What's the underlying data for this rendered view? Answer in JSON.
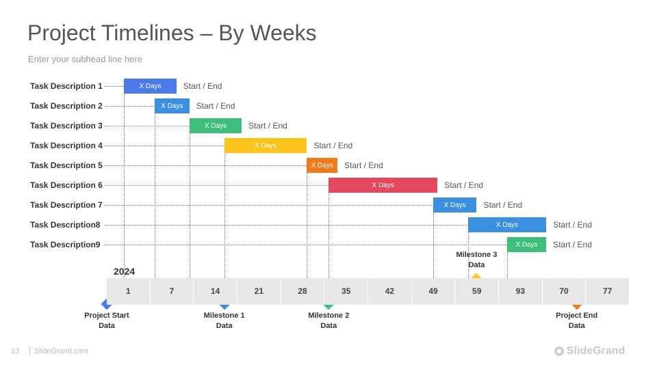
{
  "slide": {
    "title": "Project Timelines – By Weeks",
    "subhead": "Enter your subhead line here",
    "year": "2024"
  },
  "footer": {
    "page_number": "13",
    "site": "SlideGrand.com",
    "brand": "SlideGrand"
  },
  "colors": {
    "blue_light": "#4a7be8",
    "blue": "#3b8fe0",
    "green": "#3dbf7b",
    "yellow": "#fdc51c",
    "orange": "#ef7b1a",
    "red": "#e3485c",
    "axis_bg": "#e8e8e8"
  },
  "chart_data": {
    "type": "gantt",
    "title": "Project Timelines – By Weeks",
    "axis_ticks": [
      "1",
      "7",
      "14",
      "21",
      "28",
      "35",
      "42",
      "49",
      "59",
      "93",
      "70",
      "77"
    ],
    "tasks": [
      {
        "name": "Task Description 1",
        "start_tick": 0.4,
        "end_tick": 1.6,
        "bar_label": "X Days",
        "range_label": "Start / End",
        "color": "#4a7be8"
      },
      {
        "name": "Task Description 2",
        "start_tick": 1.1,
        "end_tick": 1.9,
        "bar_label": "X Days",
        "range_label": "Start / End",
        "color": "#3b8fe0"
      },
      {
        "name": "Task Description 3",
        "start_tick": 1.9,
        "end_tick": 3.1,
        "bar_label": "X Days",
        "range_label": "Start / End",
        "color": "#3dbf7b"
      },
      {
        "name": "Task Description 4",
        "start_tick": 2.7,
        "end_tick": 4.6,
        "bar_label": "X Days",
        "range_label": "Start / End",
        "color": "#fdc51c"
      },
      {
        "name": "Task Description 5",
        "start_tick": 4.6,
        "end_tick": 5.3,
        "bar_label": "X Days",
        "range_label": "Start / End",
        "color": "#ef7b1a"
      },
      {
        "name": "Task Description 6",
        "start_tick": 5.1,
        "end_tick": 7.6,
        "bar_label": "X Days",
        "range_label": "Start / End",
        "color": "#e3485c"
      },
      {
        "name": "Task Description 7",
        "start_tick": 7.5,
        "end_tick": 8.5,
        "bar_label": "X Days",
        "range_label": "Start / End",
        "color": "#3b8fe0"
      },
      {
        "name": "Task Description8",
        "start_tick": 8.3,
        "end_tick": 10.1,
        "bar_label": "X Days",
        "range_label": "Start / End",
        "color": "#3b8fe0"
      },
      {
        "name": "Task Description9",
        "start_tick": 9.2,
        "end_tick": 10.1,
        "bar_label": "X Days",
        "range_label": "Start / End",
        "color": "#3dbf7b"
      }
    ],
    "milestones": [
      {
        "label_line1": "Project Start",
        "label_line2": "Data",
        "tick": 0.0,
        "position": "below",
        "color": "#4a7be8"
      },
      {
        "label_line1": "Milestone 1",
        "label_line2": "Data",
        "tick": 2.7,
        "position": "below",
        "color": "#3b8fe0"
      },
      {
        "label_line1": "Milestone 2",
        "label_line2": "Data",
        "tick": 5.1,
        "position": "below",
        "color": "#3dbf7b"
      },
      {
        "label_line1": "Milestone 3",
        "label_line2": "Data",
        "tick": 8.5,
        "position": "above",
        "color": "#fdc51c"
      },
      {
        "label_line1": "Project End",
        "label_line2": "Data",
        "tick": 10.8,
        "position": "below",
        "color": "#ef7b1a"
      }
    ]
  }
}
